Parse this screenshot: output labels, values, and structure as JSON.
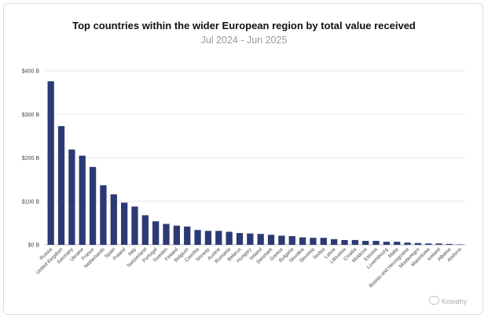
{
  "chart_data": {
    "type": "bar",
    "title": "Top countries within the wider European region by total value received",
    "subtitle": "Jul 2024 - Jun 2025",
    "xlabel": "",
    "ylabel": "",
    "ylim": [
      0,
      400
    ],
    "yticks": [
      "$0 B",
      "$100 B",
      "$200 B",
      "$300 B",
      "$400 B"
    ],
    "grid": true,
    "bar_color": "#2b3a74",
    "categories": [
      "Russia",
      "United Kingdom",
      "Germany",
      "Ukraine",
      "France",
      "Netherlands",
      "Spain",
      "Poland",
      "Italy",
      "Switzerland",
      "Portugal",
      "Sweden",
      "Finland",
      "Belgium",
      "Czechia",
      "Norway",
      "Austria",
      "Romania",
      "Belarus",
      "Hungary",
      "Ireland",
      "Denmark",
      "Greece",
      "Bulgaria",
      "Slovakia",
      "Slovenia",
      "Serbia",
      "Latvia",
      "Lithuania",
      "Croatia",
      "Moldova",
      "Estonia",
      "Luxembourg",
      "Malta",
      "Bosnia and Herzegovina",
      "Montenegro",
      "Macedonia",
      "Iceland",
      "Albania",
      "Andorra"
    ],
    "values": [
      376,
      273,
      219,
      205,
      179,
      137,
      116,
      97,
      88,
      68,
      54,
      48,
      44,
      42,
      34,
      32,
      32,
      30,
      27,
      26,
      25,
      23,
      21,
      20,
      17,
      16,
      16,
      13,
      11,
      11,
      9,
      9,
      7,
      7,
      5,
      4,
      3,
      3,
      2,
      1
    ]
  },
  "watermark": {
    "text": "Kowahy"
  }
}
